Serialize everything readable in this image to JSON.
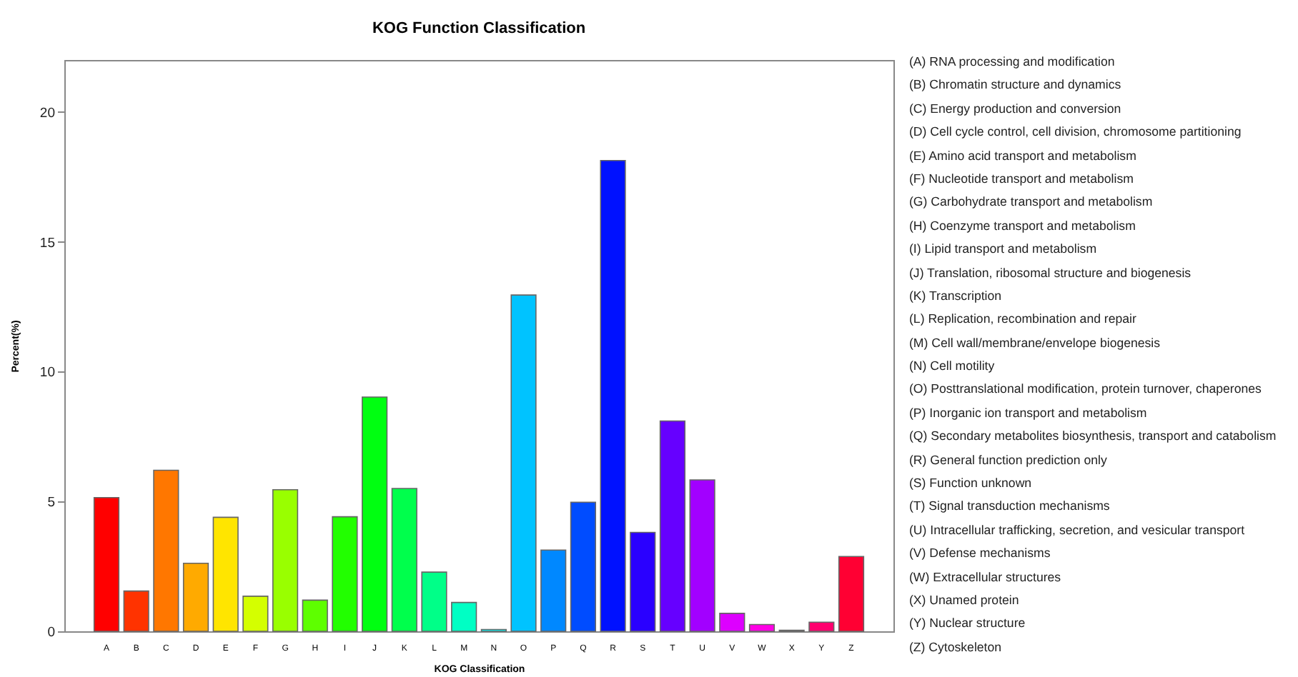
{
  "chart_data": {
    "type": "bar",
    "title": "KOG Function Classification",
    "xlabel": "KOG Classification",
    "ylabel": "Percent(%)",
    "categories": [
      "A",
      "B",
      "C",
      "D",
      "E",
      "F",
      "G",
      "H",
      "I",
      "J",
      "K",
      "L",
      "M",
      "N",
      "O",
      "P",
      "Q",
      "R",
      "S",
      "T",
      "U",
      "V",
      "W",
      "X",
      "Y",
      "Z"
    ],
    "values": [
      5.15,
      1.55,
      6.2,
      2.62,
      4.39,
      1.35,
      5.45,
      1.2,
      4.41,
      9.02,
      5.5,
      2.28,
      1.11,
      0.07,
      12.95,
      3.13,
      4.97,
      18.13,
      3.81,
      8.1,
      5.83,
      0.69,
      0.26,
      0.04,
      0.35,
      2.88
    ],
    "colors": [
      "#ff0000",
      "#ff3300",
      "#ff7700",
      "#ffaa00",
      "#ffe500",
      "#d4ff00",
      "#99ff00",
      "#5eff00",
      "#22ff00",
      "#00ff11",
      "#00ff4c",
      "#00ff88",
      "#00ffc4",
      "#00ffff",
      "#00c3ff",
      "#0088ff",
      "#004cff",
      "#0011ff",
      "#2a00ff",
      "#6600ff",
      "#a200ff",
      "#dd00ff",
      "#ff00e5",
      "#ff00aa",
      "#ff006e",
      "#ff0033"
    ],
    "ylim": [
      0,
      22
    ],
    "yticks": [
      0,
      5,
      10,
      15,
      20
    ],
    "annotations": [
      "(A) RNA processing and modification",
      "(B) Chromatin structure and dynamics",
      "(C) Energy production and conversion",
      "(D) Cell cycle control, cell division, chromosome partitioning",
      "(E) Amino acid transport and metabolism",
      "(F) Nucleotide transport and metabolism",
      "(G) Carbohydrate transport and metabolism",
      "(H) Coenzyme transport and metabolism",
      "(I) Lipid transport and metabolism",
      "(J) Translation, ribosomal structure and biogenesis",
      "(K) Transcription",
      "(L) Replication, recombination and repair",
      "(M) Cell wall/membrane/envelope biogenesis",
      "(N) Cell motility",
      "(O) Posttranslational modification, protein turnover, chaperones",
      "(P) Inorganic ion transport and metabolism",
      "(Q) Secondary metabolites biosynthesis, transport and catabolism",
      "(R) General function prediction only",
      "(S) Function unknown",
      "(T) Signal transduction mechanisms",
      "(U) Intracellular trafficking, secretion, and vesicular transport",
      "(V) Defense mechanisms",
      "(W) Extracellular structures",
      "(X) Unamed protein",
      "(Y) Nuclear structure",
      "(Z) Cytoskeleton"
    ]
  }
}
